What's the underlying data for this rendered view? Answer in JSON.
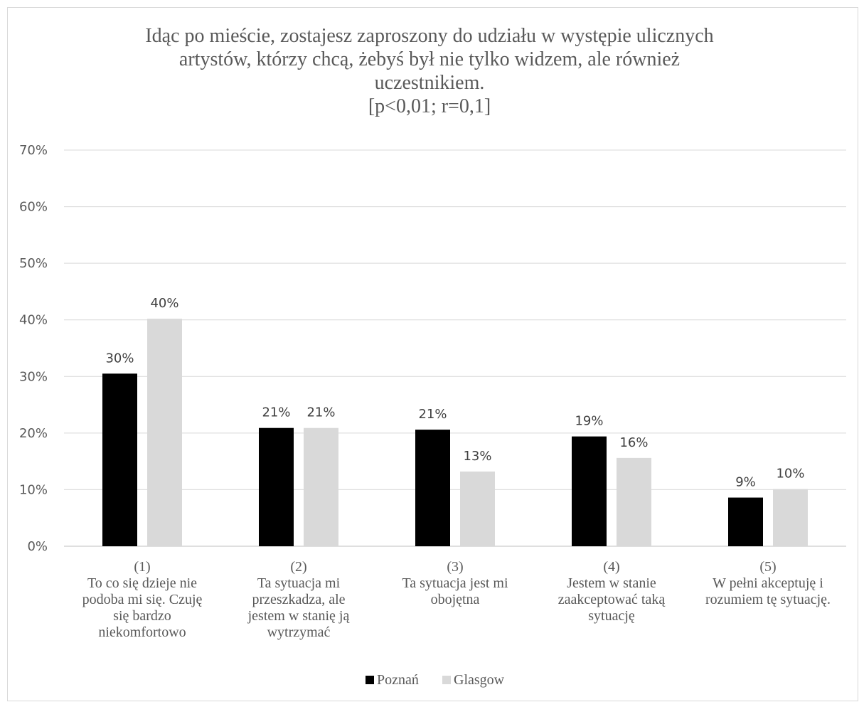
{
  "chart_data": {
    "type": "bar",
    "title": "Idąc po mieście, zostajesz zaproszony do udziału w występie ulicznych\nartystów, którzy chcą, żebyś był nie tylko widzem, ale również\nuczestnikiem.\n[p<0,01; r=0,1]",
    "categories": [
      [
        "(1)",
        "To co się dzieje nie",
        "podoba mi się. Czuję",
        "się bardzo",
        "niekomfortowo"
      ],
      [
        "(2)",
        "Ta sytuacja mi",
        "przeszkadza, ale",
        "jestem w stanię ją",
        "wytrzymać"
      ],
      [
        "(3)",
        "Ta sytuacja jest mi",
        "obojętna"
      ],
      [
        "(4)",
        "Jestem w stanie",
        "zaakceptować taką",
        "sytuację"
      ],
      [
        "(5)",
        "W pełni akceptuję i",
        "rozumiem tę sytuację."
      ]
    ],
    "series": [
      {
        "name": "Poznań",
        "color": "#000000",
        "values": [
          30.5,
          20.9,
          20.6,
          19.4,
          8.6
        ],
        "labels": [
          "30%",
          "21%",
          "21%",
          "19%",
          "9%"
        ]
      },
      {
        "name": "Glasgow",
        "color": "#d9d9d9",
        "values": [
          40.2,
          20.9,
          13.2,
          15.6,
          10.1
        ],
        "labels": [
          "40%",
          "21%",
          "13%",
          "16%",
          "10%"
        ]
      }
    ],
    "ylim": [
      0,
      70
    ],
    "yticks": [
      "0%",
      "10%",
      "20%",
      "30%",
      "40%",
      "50%",
      "60%",
      "70%"
    ],
    "grid": true,
    "legend_position": "bottom"
  }
}
